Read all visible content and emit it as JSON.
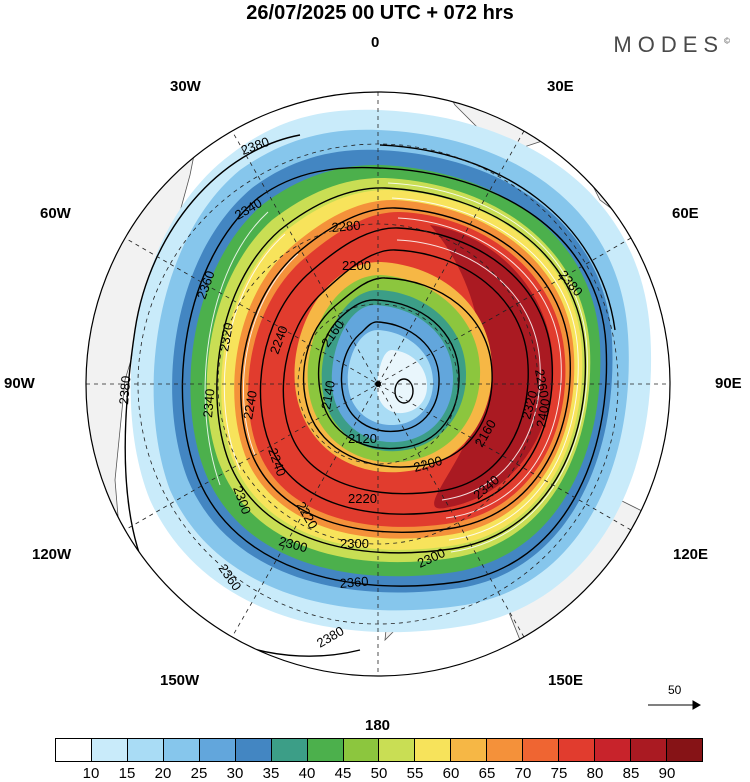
{
  "header": {
    "title": "26/07/2025  00 UTC  + 072 hrs",
    "brand": "MODES",
    "brand_mark": "©"
  },
  "map": {
    "projection": "polar stereographic (south pole)",
    "lon_labels": {
      "top": "0",
      "top_right": "30E",
      "right_upper": "60E",
      "right": "90E",
      "right_lower": "120E",
      "bottom_right": "150E",
      "bottom": "180",
      "bottom_left": "150W",
      "left_lower": "120W",
      "left": "90W",
      "left_upper": "60W",
      "top_left": "30W"
    },
    "contour_labels": [
      "2380",
      "2380",
      "2340",
      "2360",
      "2380",
      "2280",
      "2200",
      "2160",
      "2320",
      "2240",
      "2140",
      "2120",
      "2380",
      "2360",
      "2360",
      "2300",
      "2300",
      "2220",
      "2200",
      "2160",
      "2340",
      "2320",
      "2240",
      "2220",
      "2300",
      "2340",
      "2240",
      "2380",
      "2300",
      "2260",
      "2400"
    ],
    "shading_colors": [
      "#ffffff",
      "#c9ebfa",
      "#a9dcf5",
      "#86c6ec",
      "#62a6dc",
      "#4386c2",
      "#3c9e87",
      "#4cb04c",
      "#8cc63e",
      "#c9de54",
      "#f7e35b",
      "#f6b745",
      "#f4913a",
      "#ef6532",
      "#e13c2e",
      "#c8232b",
      "#aa1a22",
      "#861316"
    ]
  },
  "vector_reference": {
    "label": "50"
  },
  "colorbar": {
    "ticks": [
      "10",
      "15",
      "20",
      "25",
      "30",
      "35",
      "40",
      "45",
      "50",
      "55",
      "60",
      "65",
      "70",
      "75",
      "80",
      "85",
      "90"
    ],
    "colors": [
      "#ffffff",
      "#c9ebfa",
      "#a9dcf5",
      "#86c6ec",
      "#62a6dc",
      "#4386c2",
      "#3c9e87",
      "#4cb04c",
      "#8cc63e",
      "#c9de54",
      "#f7e35b",
      "#f6b745",
      "#f4913a",
      "#ef6532",
      "#e13c2e",
      "#c8232b",
      "#aa1a22",
      "#861316"
    ]
  }
}
